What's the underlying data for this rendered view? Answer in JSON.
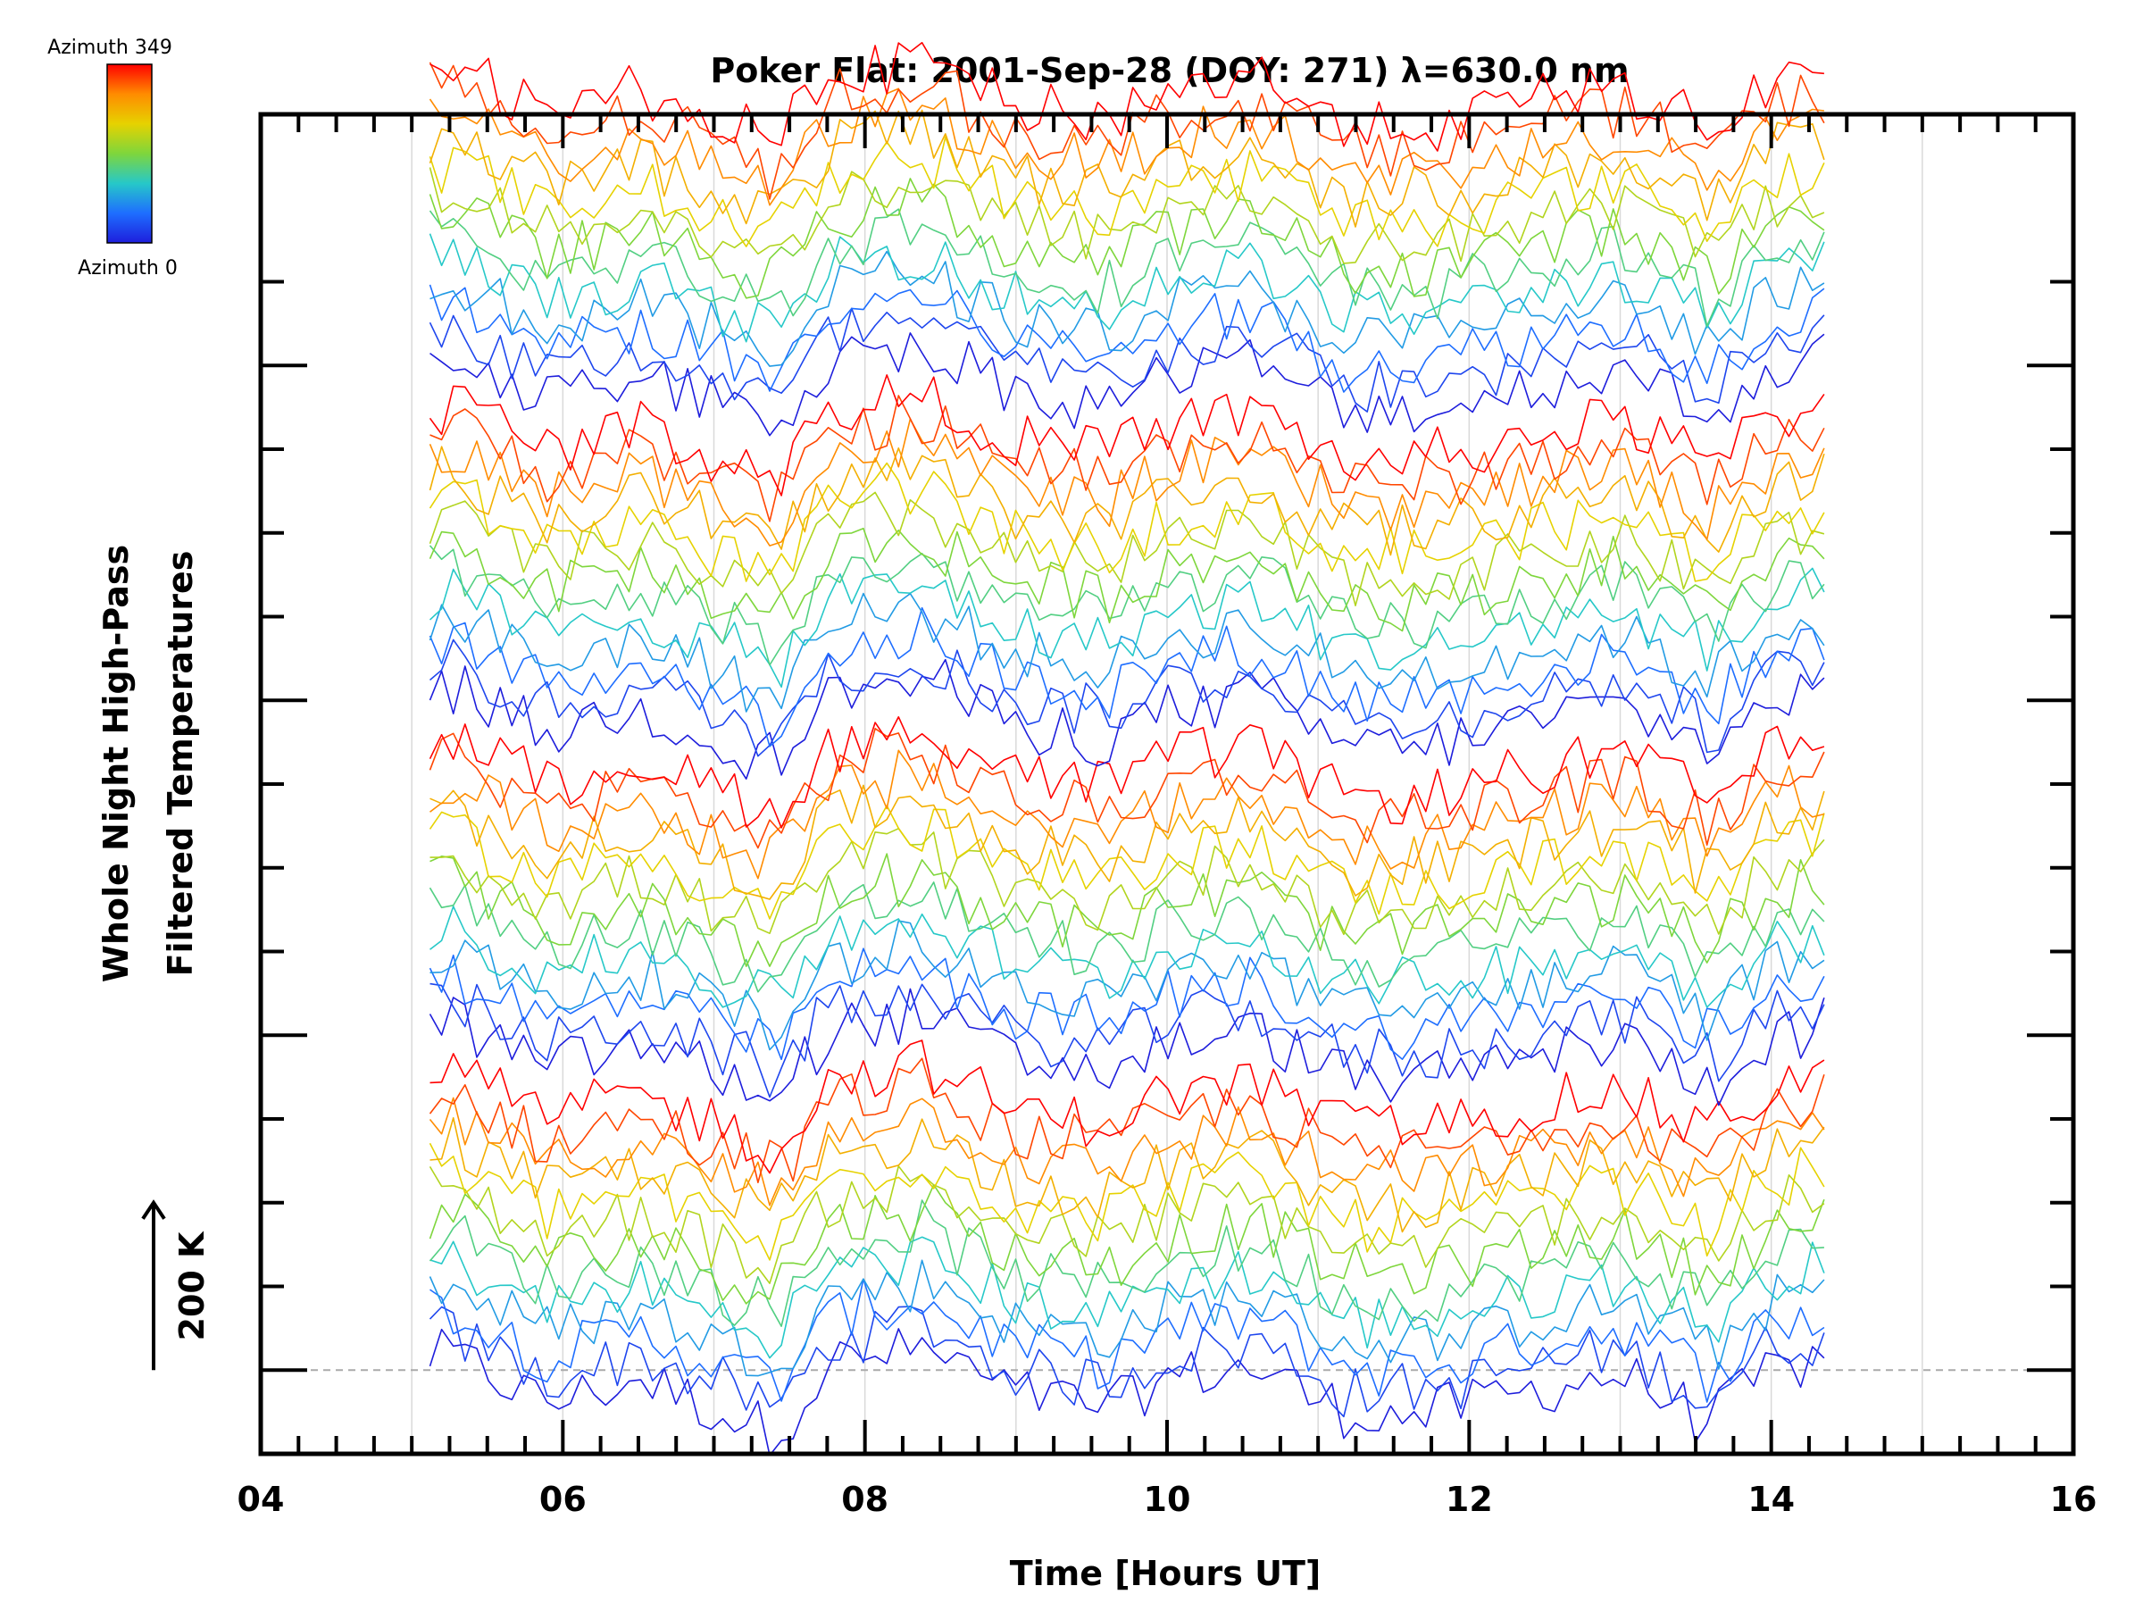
{
  "chart_data": {
    "type": "line",
    "title": "Poker Flat: 2001-Sep-28 (DOY: 271) λ=630.0 nm",
    "xlabel": "Time [Hours UT]",
    "ylabel_line1": "Whole Night High-Pass",
    "ylabel_line2": "Filtered Temperatures",
    "scale_label": "200 K",
    "xlim": [
      4,
      16
    ],
    "x_ticks": [
      "04",
      "06",
      "08",
      "10",
      "12",
      "14",
      "16"
    ],
    "x_tick_values": [
      4,
      6,
      8,
      10,
      12,
      14,
      16
    ],
    "x_grid_values": [
      5,
      6,
      7,
      8,
      9,
      10,
      11,
      12,
      13,
      14,
      15
    ],
    "time_range": [
      5.12,
      14.35
    ],
    "ylim": [
      -100,
      1500
    ],
    "scale_bar_K": 200,
    "colorbar": {
      "label_max": "Azimuth 349",
      "label_min": "Azimuth 0",
      "colors": [
        "#ff0000",
        "#ff8c00",
        "#e6d200",
        "#7ed63c",
        "#26c8c8",
        "#1e6eff",
        "#1e1edc"
      ]
    },
    "series_summary": {
      "count": 52,
      "groups": 4,
      "group_baselines_K": [
        0,
        400,
        800,
        1200
      ],
      "note_ordering": "within each group azimuth runs from 0 (blue, bottom) to 349 (red, top)",
      "amplitude_K": 40
    },
    "common_features": [
      {
        "t": 5.3,
        "dT": 35
      },
      {
        "t": 5.9,
        "dT": -20
      },
      {
        "t": 6.5,
        "dT": 10
      },
      {
        "t": 7.0,
        "dT": -25
      },
      {
        "t": 7.4,
        "dT": -55
      },
      {
        "t": 7.8,
        "dT": 30
      },
      {
        "t": 8.4,
        "dT": 45
      },
      {
        "t": 9.0,
        "dT": -10
      },
      {
        "t": 9.6,
        "dT": -25
      },
      {
        "t": 10.0,
        "dT": 10
      },
      {
        "t": 10.6,
        "dT": 25
      },
      {
        "t": 11.2,
        "dT": -35
      },
      {
        "t": 11.8,
        "dT": -30
      },
      {
        "t": 12.4,
        "dT": -5
      },
      {
        "t": 13.0,
        "dT": 15
      },
      {
        "t": 13.6,
        "dT": -40
      },
      {
        "t": 14.0,
        "dT": 20
      },
      {
        "t": 14.35,
        "dT": 30
      }
    ]
  }
}
